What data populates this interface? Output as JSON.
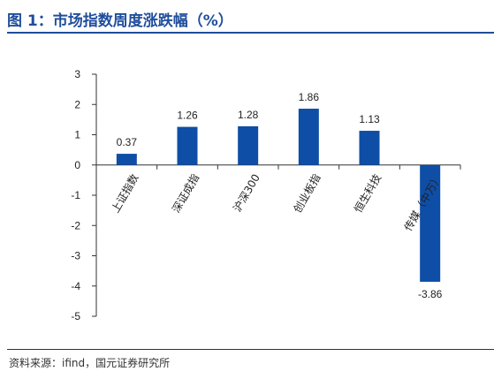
{
  "title": "图 1：市场指数周度涨跌幅（%）",
  "source": "资料来源：ifind，国元证券研究所",
  "colors": {
    "bar": "#0e4ea6",
    "title": "#1f4e9c"
  },
  "chart_data": {
    "type": "bar",
    "categories": [
      "上证指数",
      "深证成指",
      "沪深300",
      "创业板指",
      "恒生科技",
      "传媒（中万）"
    ],
    "values": [
      0.37,
      1.26,
      1.28,
      1.86,
      1.13,
      -3.86
    ],
    "data_labels": [
      "0.37",
      "1.26",
      "1.28",
      "1.86",
      "1.13",
      "-3.86"
    ],
    "ylim": [
      -5,
      3
    ],
    "yticks": [
      3,
      2,
      1,
      0,
      -1,
      -2,
      -3,
      -4,
      -5
    ],
    "grid": false,
    "legend": "none"
  }
}
